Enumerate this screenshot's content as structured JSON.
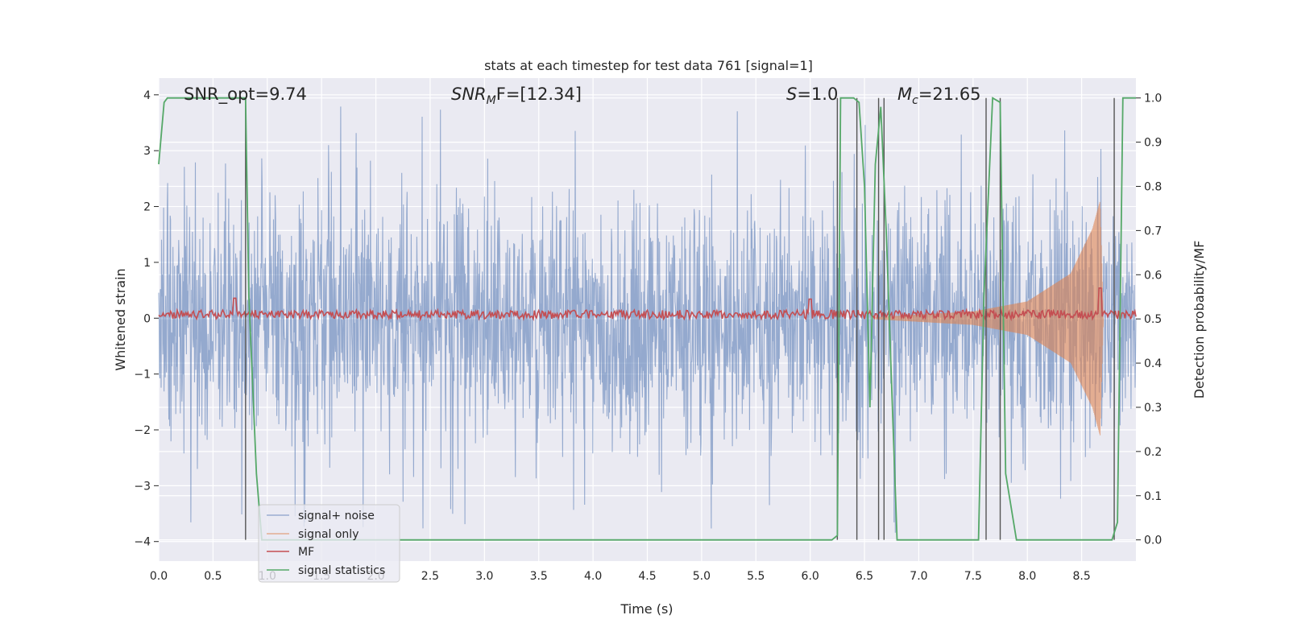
{
  "chart_data": {
    "type": "line",
    "title": "stats at each timestep for test data 761 [signal=1]",
    "xlabel": "Time (s)",
    "ylabel": "Whitened strain",
    "y2label": "Detection probability/MF",
    "xlim": [
      0.0,
      9.0
    ],
    "ylim": [
      -4.35,
      4.3
    ],
    "y2lim": [
      -0.048,
      1.045
    ],
    "x_ticks": [
      "0.0",
      "0.5",
      "1.0",
      "1.5",
      "2.0",
      "2.5",
      "3.0",
      "3.5",
      "4.0",
      "4.5",
      "5.0",
      "5.5",
      "6.0",
      "6.5",
      "7.0",
      "7.5",
      "8.0",
      "8.5"
    ],
    "x_tick_values": [
      0.0,
      0.5,
      1.0,
      1.5,
      2.0,
      2.5,
      3.0,
      3.5,
      4.0,
      4.5,
      5.0,
      5.5,
      6.0,
      6.5,
      7.0,
      7.5,
      8.0,
      8.5
    ],
    "y_ticks": [
      "4",
      "3",
      "2",
      "1",
      "0",
      "−1",
      "−2",
      "−3",
      "−4"
    ],
    "y_tick_values": [
      4,
      3,
      2,
      1,
      0,
      -1,
      -2,
      -3,
      -4
    ],
    "y2_ticks": [
      "1.0",
      "0.9",
      "0.8",
      "0.7",
      "0.6",
      "0.5",
      "0.4",
      "0.3",
      "0.2",
      "0.1",
      "0.0"
    ],
    "y2_tick_values": [
      1.0,
      0.9,
      0.8,
      0.7,
      0.6,
      0.5,
      0.4,
      0.3,
      0.2,
      0.1,
      0.0
    ],
    "grid": true,
    "legend_position": "lower-left",
    "annotations": {
      "snr_opt": "SNR_opt=9.74",
      "snr_mf_label": "SNR",
      "snr_mf_sub": "M",
      "snr_mf_rest": "F=[12.34]",
      "s_label": "S",
      "s_rest": "=1.0",
      "mc_label": "M",
      "mc_sub": "c",
      "mc_rest": "=21.65"
    },
    "series": [
      {
        "name": "signal+ noise",
        "color": "#4c72b0",
        "description_values": "whitened strain noise, roughly uniform amplitude",
        "x_range": [
          0.0,
          9.0
        ],
        "typical_envelope": [
          -2.5,
          2.5
        ],
        "peak_max": 3.9,
        "peak_min": -4.0
      },
      {
        "name": "signal only",
        "color": "#dd8452",
        "x_range": [
          6.6,
          8.7
        ],
        "amplitude_points": [
          [
            6.6,
            0.02
          ],
          [
            7.5,
            0.12
          ],
          [
            8.0,
            0.3
          ],
          [
            8.4,
            0.8
          ],
          [
            8.6,
            1.6
          ],
          [
            8.67,
            2.1
          ],
          [
            8.7,
            0.0
          ]
        ]
      },
      {
        "name": "MF",
        "color": "#c44e52",
        "axis": "right",
        "baseline": 0.51,
        "spikes": [
          [
            0.7,
            0.547
          ],
          [
            6.0,
            0.545
          ],
          [
            8.67,
            0.57
          ]
        ]
      },
      {
        "name": "signal statistics",
        "color": "#55a868",
        "axis": "right",
        "x": [
          0.0,
          0.05,
          0.08,
          0.15,
          0.8,
          0.83,
          0.9,
          0.95,
          6.2,
          6.25,
          6.28,
          6.4,
          6.45,
          6.5,
          6.55,
          6.6,
          6.65,
          6.7,
          6.8,
          7.55,
          7.6,
          7.68,
          7.75,
          7.8,
          7.9,
          8.78,
          8.83,
          8.88,
          9.0
        ],
        "y": [
          0.85,
          0.99,
          1.0,
          1.0,
          1.0,
          0.55,
          0.15,
          0.0,
          0.0,
          0.01,
          1.0,
          1.0,
          0.99,
          0.8,
          0.3,
          0.85,
          0.98,
          0.7,
          0.0,
          0.0,
          0.55,
          1.0,
          0.99,
          0.15,
          0.0,
          0.0,
          0.04,
          1.0,
          1.0
        ]
      }
    ],
    "vertical_lines_x": [
      0.8,
      6.25,
      6.43,
      6.63,
      6.68,
      7.62,
      7.75,
      8.8
    ]
  }
}
